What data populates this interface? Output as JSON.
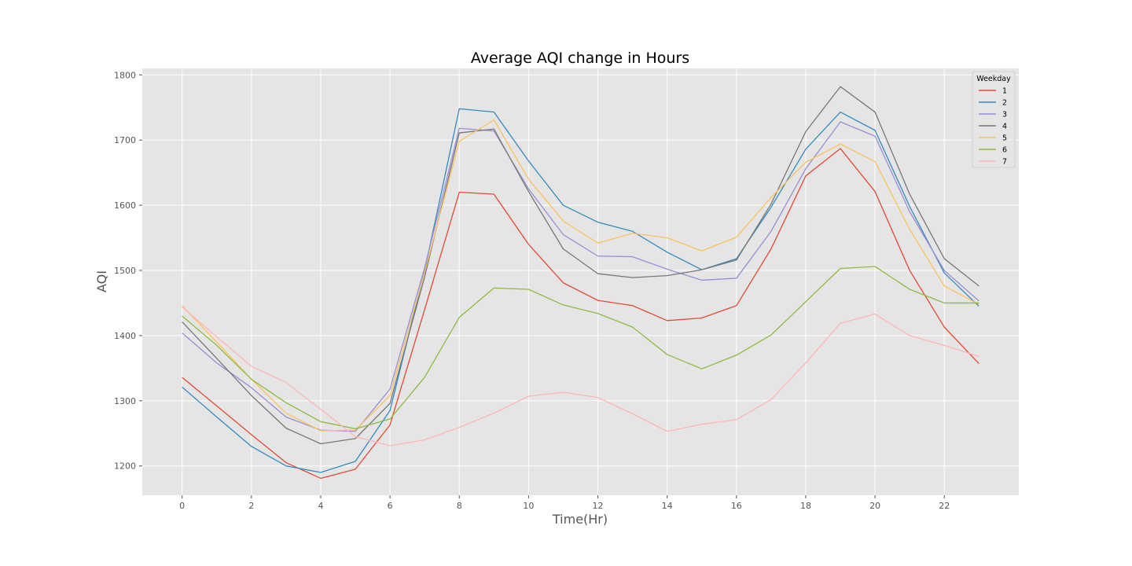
{
  "chart_data": {
    "type": "line",
    "title": "Average AQI change in Hours",
    "xlabel": "Time(Hr)",
    "ylabel": "AQI",
    "x": [
      0,
      1,
      2,
      3,
      4,
      5,
      6,
      7,
      8,
      9,
      10,
      11,
      12,
      13,
      14,
      15,
      16,
      17,
      18,
      19,
      20,
      21,
      22,
      23
    ],
    "xlim": [
      -1.15,
      24.15
    ],
    "ylim": [
      1155,
      1810
    ],
    "xticks": [
      0,
      2,
      4,
      6,
      8,
      10,
      12,
      14,
      16,
      18,
      20,
      22
    ],
    "yticks": [
      1200,
      1300,
      1400,
      1500,
      1600,
      1700,
      1800
    ],
    "grid": true,
    "legend": {
      "title": "Weekday",
      "position": "top-right"
    },
    "background": "#e5e5e5",
    "series": [
      {
        "name": "1",
        "color": "#e24a33",
        "values": [
          1336,
          1292,
          1248,
          1205,
          1181,
          1195,
          1263,
          1440,
          1620,
          1617,
          1540,
          1481,
          1454,
          1446,
          1423,
          1427,
          1446,
          1533,
          1645,
          1687,
          1621,
          1500,
          1413,
          1357
        ]
      },
      {
        "name": "2",
        "color": "#348abd",
        "values": [
          1321,
          1275,
          1230,
          1200,
          1190,
          1207,
          1285,
          1500,
          1748,
          1743,
          1668,
          1600,
          1574,
          1560,
          1528,
          1501,
          1518,
          1597,
          1686,
          1743,
          1715,
          1598,
          1496,
          1445
        ]
      },
      {
        "name": "3",
        "color": "#988ed5",
        "values": [
          1404,
          1358,
          1320,
          1275,
          1255,
          1253,
          1318,
          1504,
          1718,
          1714,
          1625,
          1555,
          1522,
          1521,
          1502,
          1485,
          1488,
          1560,
          1656,
          1728,
          1706,
          1590,
          1500,
          1453
        ]
      },
      {
        "name": "4",
        "color": "#777777",
        "values": [
          1421,
          1365,
          1308,
          1258,
          1234,
          1242,
          1296,
          1490,
          1711,
          1717,
          1621,
          1533,
          1495,
          1489,
          1492,
          1501,
          1516,
          1602,
          1713,
          1782,
          1743,
          1617,
          1518,
          1476
        ]
      },
      {
        "name": "5",
        "color": "#fbc15e",
        "values": [
          1446,
          1390,
          1333,
          1281,
          1254,
          1255,
          1308,
          1497,
          1698,
          1731,
          1640,
          1576,
          1542,
          1557,
          1550,
          1530,
          1551,
          1612,
          1666,
          1694,
          1667,
          1563,
          1476,
          1448
        ]
      },
      {
        "name": "6",
        "color": "#8eba42",
        "values": [
          1430,
          1385,
          1333,
          1297,
          1268,
          1257,
          1272,
          1336,
          1428,
          1473,
          1471,
          1447,
          1434,
          1413,
          1371,
          1349,
          1370,
          1401,
          1452,
          1503,
          1506,
          1471,
          1450,
          1450
        ]
      },
      {
        "name": "7",
        "color": "#ffb5b8",
        "values": [
          1444,
          1398,
          1353,
          1328,
          1287,
          1245,
          1231,
          1240,
          1259,
          1281,
          1307,
          1313,
          1305,
          1280,
          1253,
          1264,
          1271,
          1302,
          1358,
          1419,
          1433,
          1400,
          1385,
          1368
        ]
      }
    ]
  }
}
